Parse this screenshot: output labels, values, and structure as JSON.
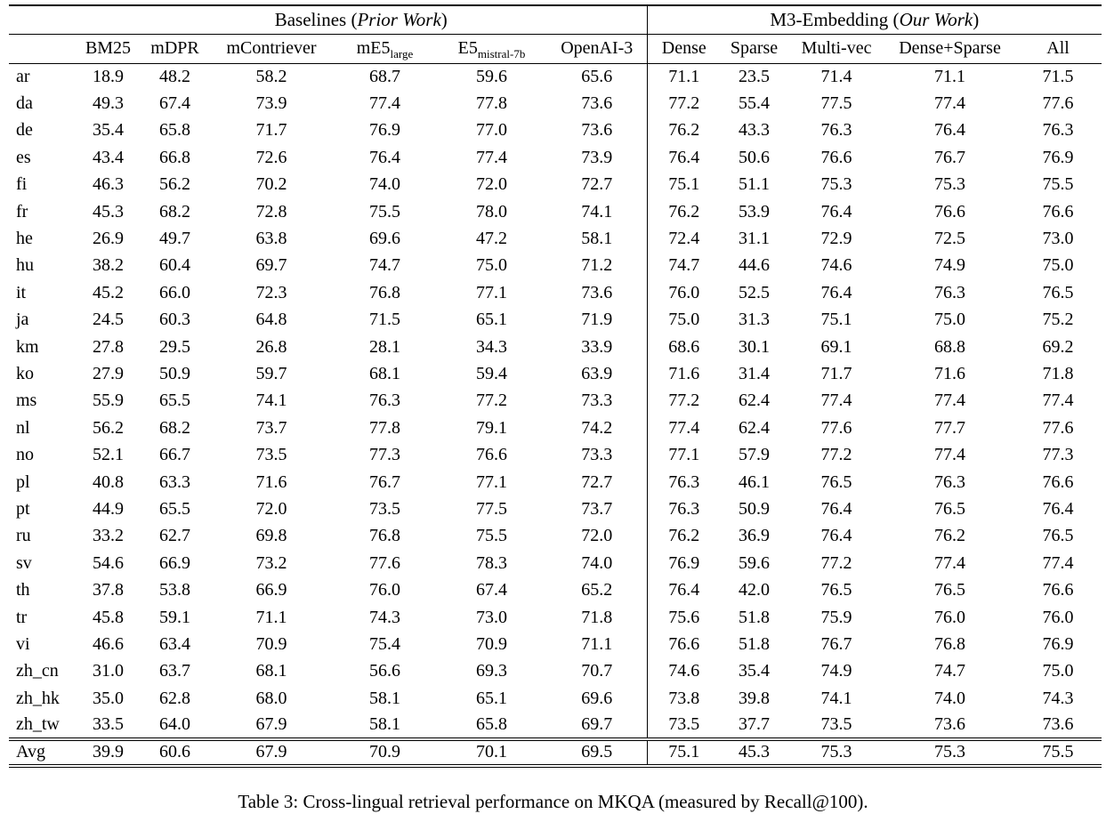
{
  "caption": "Table 3: Cross-lingual retrieval performance on MKQA (measured by Recall@100).",
  "table": {
    "groups": [
      {
        "name": "Baselines",
        "qualifier": "Prior Work",
        "span": 6
      },
      {
        "name": "M3-Embedding",
        "qualifier": "Our Work",
        "span": 5
      }
    ],
    "columns": [
      {
        "label": "BM25"
      },
      {
        "label": "mDPR"
      },
      {
        "label": "mContriever"
      },
      {
        "label": "mE5",
        "subscript": "large"
      },
      {
        "label": "E5",
        "subscript": "mistral-7b"
      },
      {
        "label": "OpenAI-3"
      },
      {
        "label": "Dense",
        "group_start": true
      },
      {
        "label": "Sparse"
      },
      {
        "label": "Multi-vec"
      },
      {
        "label": "Dense+Sparse"
      },
      {
        "label": "All"
      }
    ],
    "rows": [
      {
        "lang": "ar",
        "values": [
          "18.9",
          "48.2",
          "58.2",
          "68.7",
          "59.6",
          "65.6",
          "71.1",
          "23.5",
          "71.4",
          "71.1",
          "71.5"
        ],
        "bold": [
          10
        ]
      },
      {
        "lang": "da",
        "values": [
          "49.3",
          "67.4",
          "73.9",
          "77.4",
          "77.8",
          "73.6",
          "77.2",
          "55.4",
          "77.5",
          "77.4",
          "77.6"
        ],
        "bold": [
          4
        ]
      },
      {
        "lang": "de",
        "values": [
          "35.4",
          "65.8",
          "71.7",
          "76.9",
          "77.0",
          "73.6",
          "76.2",
          "43.3",
          "76.3",
          "76.4",
          "76.3"
        ],
        "bold": [
          4
        ]
      },
      {
        "lang": "es",
        "values": [
          "43.4",
          "66.8",
          "72.6",
          "76.4",
          "77.4",
          "73.9",
          "76.4",
          "50.6",
          "76.6",
          "76.7",
          "76.9"
        ],
        "bold": [
          4
        ]
      },
      {
        "lang": "fi",
        "values": [
          "46.3",
          "56.2",
          "70.2",
          "74.0",
          "72.0",
          "72.7",
          "75.1",
          "51.1",
          "75.3",
          "75.3",
          "75.5"
        ],
        "bold": [
          10
        ]
      },
      {
        "lang": "fr",
        "values": [
          "45.3",
          "68.2",
          "72.8",
          "75.5",
          "78.0",
          "74.1",
          "76.2",
          "53.9",
          "76.4",
          "76.6",
          "76.6"
        ],
        "bold": [
          4
        ]
      },
      {
        "lang": "he",
        "values": [
          "26.9",
          "49.7",
          "63.8",
          "69.6",
          "47.2",
          "58.1",
          "72.4",
          "31.1",
          "72.9",
          "72.5",
          "73.0"
        ],
        "bold": [
          10
        ]
      },
      {
        "lang": "hu",
        "values": [
          "38.2",
          "60.4",
          "69.7",
          "74.7",
          "75.0",
          "71.2",
          "74.7",
          "44.6",
          "74.6",
          "74.9",
          "75.0"
        ],
        "bold": [
          4,
          10
        ]
      },
      {
        "lang": "it",
        "values": [
          "45.2",
          "66.0",
          "72.3",
          "76.8",
          "77.1",
          "73.6",
          "76.0",
          "52.5",
          "76.4",
          "76.3",
          "76.5"
        ],
        "bold": [
          4
        ]
      },
      {
        "lang": "ja",
        "values": [
          "24.5",
          "60.3",
          "64.8",
          "71.5",
          "65.1",
          "71.9",
          "75.0",
          "31.3",
          "75.1",
          "75.0",
          "75.2"
        ],
        "bold": [
          10
        ]
      },
      {
        "lang": "km",
        "values": [
          "27.8",
          "29.5",
          "26.8",
          "28.1",
          "34.3",
          "33.9",
          "68.6",
          "30.1",
          "69.1",
          "68.8",
          "69.2"
        ],
        "bold": [
          10
        ]
      },
      {
        "lang": "ko",
        "values": [
          "27.9",
          "50.9",
          "59.7",
          "68.1",
          "59.4",
          "63.9",
          "71.6",
          "31.4",
          "71.7",
          "71.6",
          "71.8"
        ],
        "bold": [
          10
        ]
      },
      {
        "lang": "ms",
        "values": [
          "55.9",
          "65.5",
          "74.1",
          "76.3",
          "77.2",
          "73.3",
          "77.2",
          "62.4",
          "77.4",
          "77.4",
          "77.4"
        ],
        "bold": [
          8,
          9,
          10
        ]
      },
      {
        "lang": "nl",
        "values": [
          "56.2",
          "68.2",
          "73.7",
          "77.8",
          "79.1",
          "74.2",
          "77.4",
          "62.4",
          "77.6",
          "77.7",
          "77.6"
        ],
        "bold": [
          4
        ]
      },
      {
        "lang": "no",
        "values": [
          "52.1",
          "66.7",
          "73.5",
          "77.3",
          "76.6",
          "73.3",
          "77.1",
          "57.9",
          "77.2",
          "77.4",
          "77.3"
        ],
        "bold": [
          9
        ]
      },
      {
        "lang": "pl",
        "values": [
          "40.8",
          "63.3",
          "71.6",
          "76.7",
          "77.1",
          "72.7",
          "76.3",
          "46.1",
          "76.5",
          "76.3",
          "76.6"
        ],
        "bold": [
          4
        ]
      },
      {
        "lang": "pt",
        "values": [
          "44.9",
          "65.5",
          "72.0",
          "73.5",
          "77.5",
          "73.7",
          "76.3",
          "50.9",
          "76.4",
          "76.5",
          "76.4"
        ],
        "bold": [
          4
        ]
      },
      {
        "lang": "ru",
        "values": [
          "33.2",
          "62.7",
          "69.8",
          "76.8",
          "75.5",
          "72.0",
          "76.2",
          "36.9",
          "76.4",
          "76.2",
          "76.5"
        ],
        "bold": [
          3
        ]
      },
      {
        "lang": "sv",
        "values": [
          "54.6",
          "66.9",
          "73.2",
          "77.6",
          "78.3",
          "74.0",
          "76.9",
          "59.6",
          "77.2",
          "77.4",
          "77.4"
        ],
        "bold": [
          4
        ]
      },
      {
        "lang": "th",
        "values": [
          "37.8",
          "53.8",
          "66.9",
          "76.0",
          "67.4",
          "65.2",
          "76.4",
          "42.0",
          "76.5",
          "76.5",
          "76.6"
        ],
        "bold": [
          10
        ]
      },
      {
        "lang": "tr",
        "values": [
          "45.8",
          "59.1",
          "71.1",
          "74.3",
          "73.0",
          "71.8",
          "75.6",
          "51.8",
          "75.9",
          "76.0",
          "76.0"
        ],
        "bold": [
          9,
          10
        ]
      },
      {
        "lang": "vi",
        "values": [
          "46.6",
          "63.4",
          "70.9",
          "75.4",
          "70.9",
          "71.1",
          "76.6",
          "51.8",
          "76.7",
          "76.8",
          "76.9"
        ],
        "bold": [
          10
        ]
      },
      {
        "lang": "zh_cn",
        "values": [
          "31.0",
          "63.7",
          "68.1",
          "56.6",
          "69.3",
          "70.7",
          "74.6",
          "35.4",
          "74.9",
          "74.7",
          "75.0"
        ],
        "bold": [
          10
        ]
      },
      {
        "lang": "zh_hk",
        "values": [
          "35.0",
          "62.8",
          "68.0",
          "58.1",
          "65.1",
          "69.6",
          "73.8",
          "39.8",
          "74.1",
          "74.0",
          "74.3"
        ],
        "bold": [
          10
        ]
      },
      {
        "lang": "zh_tw",
        "values": [
          "33.5",
          "64.0",
          "67.9",
          "58.1",
          "65.8",
          "69.7",
          "73.5",
          "37.7",
          "73.5",
          "73.6",
          "73.6"
        ],
        "bold": [
          9,
          10
        ]
      }
    ],
    "avg_row": {
      "lang": "Avg",
      "values": [
        "39.9",
        "60.6",
        "67.9",
        "70.9",
        "70.1",
        "69.5",
        "75.1",
        "45.3",
        "75.3",
        "75.3",
        "75.5"
      ],
      "bold": [
        10
      ]
    }
  }
}
